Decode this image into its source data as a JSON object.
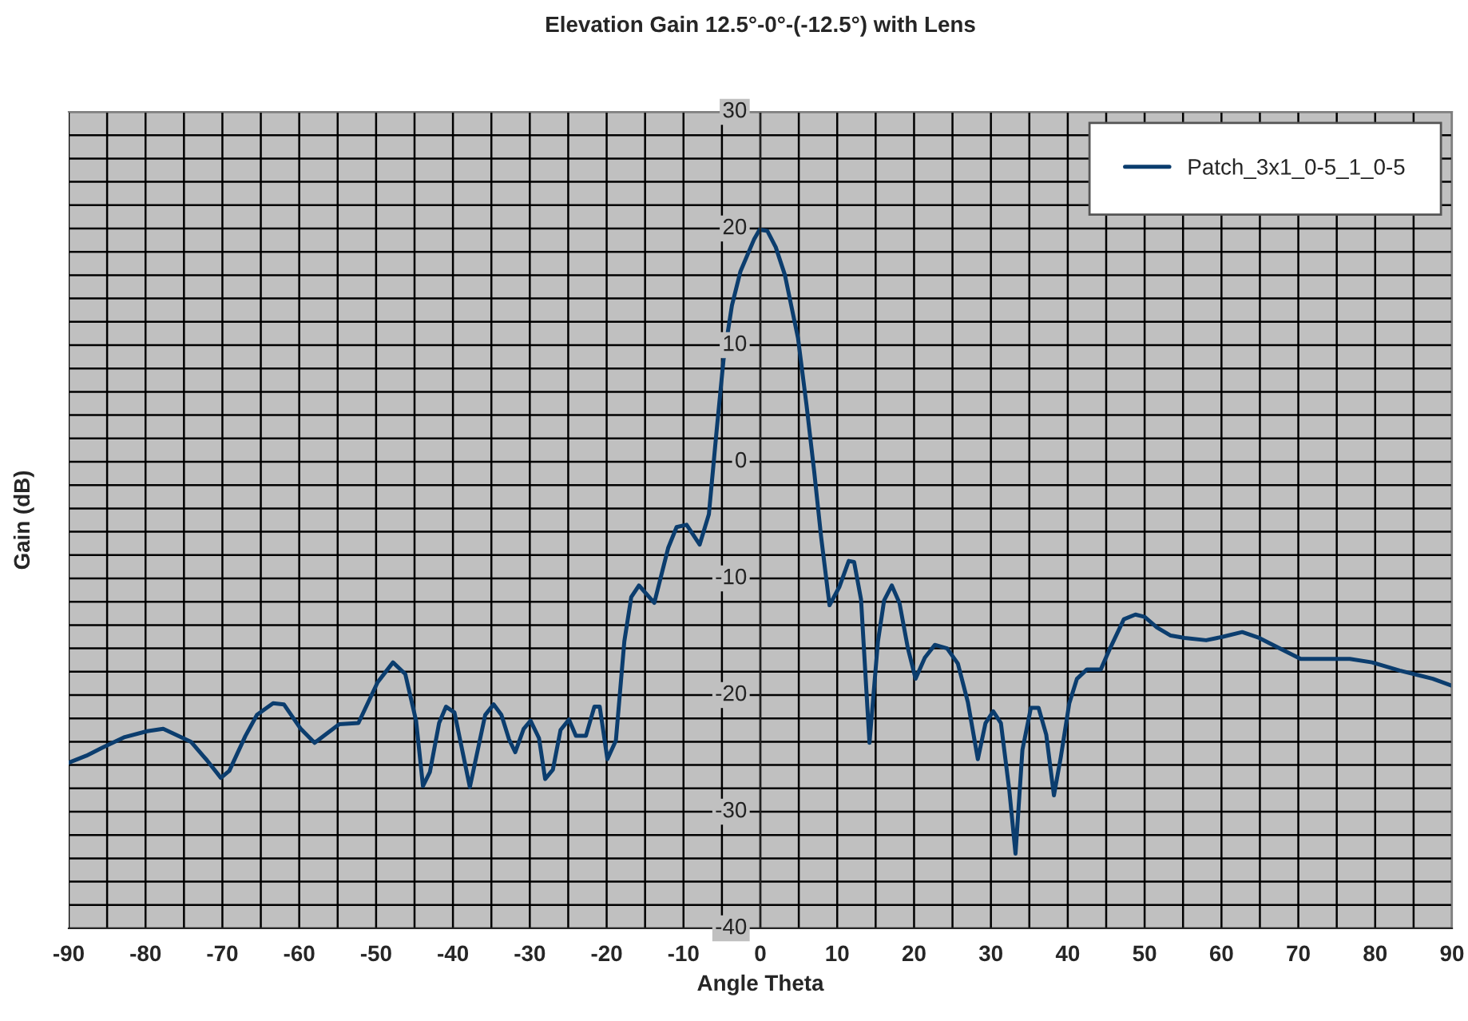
{
  "chart_data": {
    "type": "line",
    "title": "Elevation Gain 12.5°-0°-(-12.5°) with Lens",
    "xlabel": "Angle Theta",
    "ylabel": "Gain (dB)",
    "x": [
      -90,
      -87.7,
      -85.6,
      -82.7,
      -79.8,
      -77.7,
      -74.1,
      -72.0,
      -70.2,
      -69.1,
      -67.0,
      -65.5,
      -63.4,
      -62.0,
      -59.8,
      -58.0,
      -54.8,
      -52.3,
      -49.8,
      -47.8,
      -46.2,
      -44.8,
      -43.9,
      -43.0,
      -41.8,
      -40.9,
      -39.8,
      -37.8,
      -35.8,
      -34.7,
      -33.7,
      -32.7,
      -31.9,
      -30.8,
      -29.9,
      -28.8,
      -28.0,
      -27.0,
      -26.0,
      -24.9,
      -24.0,
      -22.7,
      -21.6,
      -20.9,
      -19.9,
      -18.8,
      -17.7,
      -16.8,
      -15.8,
      -13.8,
      -12.0,
      -10.9,
      -9.6,
      -7.9,
      -6.7,
      -5.7,
      -4.8,
      -3.7,
      -2.6,
      -0.8,
      -0.1,
      0.9,
      2.0,
      3.2,
      4.9,
      6.0,
      7.0,
      7.9,
      9.0,
      10.3,
      11.5,
      12.2,
      13.1,
      14.2,
      15.3,
      16.1,
      17.1,
      18.1,
      19.2,
      20.2,
      21.4,
      22.7,
      24.3,
      25.7,
      27.0,
      28.3,
      29.3,
      30.3,
      31.3,
      32.4,
      33.2,
      34.1,
      35.2,
      36.2,
      37.2,
      38.2,
      39.1,
      40.2,
      41.2,
      42.5,
      44.3,
      45.5,
      47.3,
      48.8,
      50.0,
      51.6,
      53.4,
      55.2,
      58.0,
      60.2,
      62.7,
      64.9,
      67.0,
      70.3,
      76.7,
      79.6,
      83.2,
      87.5,
      90
    ],
    "series": [
      {
        "name": "Patch_3x1_0-5_1_0-5",
        "color": "#0b3d6e",
        "values": [
          -25.8,
          -25.2,
          -24.5,
          -23.6,
          -23.1,
          -22.9,
          -24.0,
          -25.6,
          -27.1,
          -26.5,
          -23.5,
          -21.7,
          -20.7,
          -20.8,
          -22.9,
          -24.1,
          -22.5,
          -22.4,
          -18.9,
          -17.2,
          -18.2,
          -22.2,
          -27.8,
          -26.6,
          -22.4,
          -21.0,
          -21.5,
          -27.9,
          -21.7,
          -20.8,
          -21.7,
          -23.8,
          -24.9,
          -22.9,
          -22.2,
          -23.7,
          -27.2,
          -26.4,
          -23.0,
          -22.1,
          -23.5,
          -23.5,
          -21.0,
          -21.0,
          -25.5,
          -23.9,
          -15.4,
          -11.6,
          -10.6,
          -12.1,
          -7.4,
          -5.6,
          -5.4,
          -7.1,
          -4.5,
          2.6,
          8.7,
          13.4,
          16.3,
          19.1,
          19.9,
          19.8,
          18.4,
          16.0,
          10.6,
          4.9,
          -0.8,
          -6.4,
          -12.3,
          -10.7,
          -8.5,
          -8.6,
          -11.8,
          -24.1,
          -15.4,
          -11.9,
          -10.6,
          -12.1,
          -16.0,
          -18.6,
          -16.8,
          -15.7,
          -16.0,
          -17.3,
          -20.6,
          -25.5,
          -22.4,
          -21.4,
          -22.4,
          -28.2,
          -33.6,
          -24.7,
          -21.1,
          -21.1,
          -23.4,
          -28.6,
          -25.3,
          -20.7,
          -18.6,
          -17.8,
          -17.8,
          -16.0,
          -13.5,
          -13.1,
          -13.3,
          -14.2,
          -14.9,
          -15.1,
          -15.3,
          -15.0,
          -14.6,
          -15.1,
          -15.8,
          -16.9,
          -16.9,
          -17.2,
          -17.9,
          -18.6,
          -19.2
        ]
      }
    ],
    "xlim": [
      -90,
      90
    ],
    "xticks": [
      -90,
      -80,
      -70,
      -60,
      -50,
      -40,
      -30,
      -20,
      -10,
      0,
      10,
      20,
      30,
      40,
      50,
      60,
      70,
      80,
      90
    ],
    "ylim": [
      -40,
      30
    ],
    "yticks": [
      -40,
      -30,
      -20,
      -10,
      0,
      10,
      20,
      30
    ],
    "grid": true,
    "legend": "top right",
    "marker": "none",
    "line_style": "solid"
  }
}
